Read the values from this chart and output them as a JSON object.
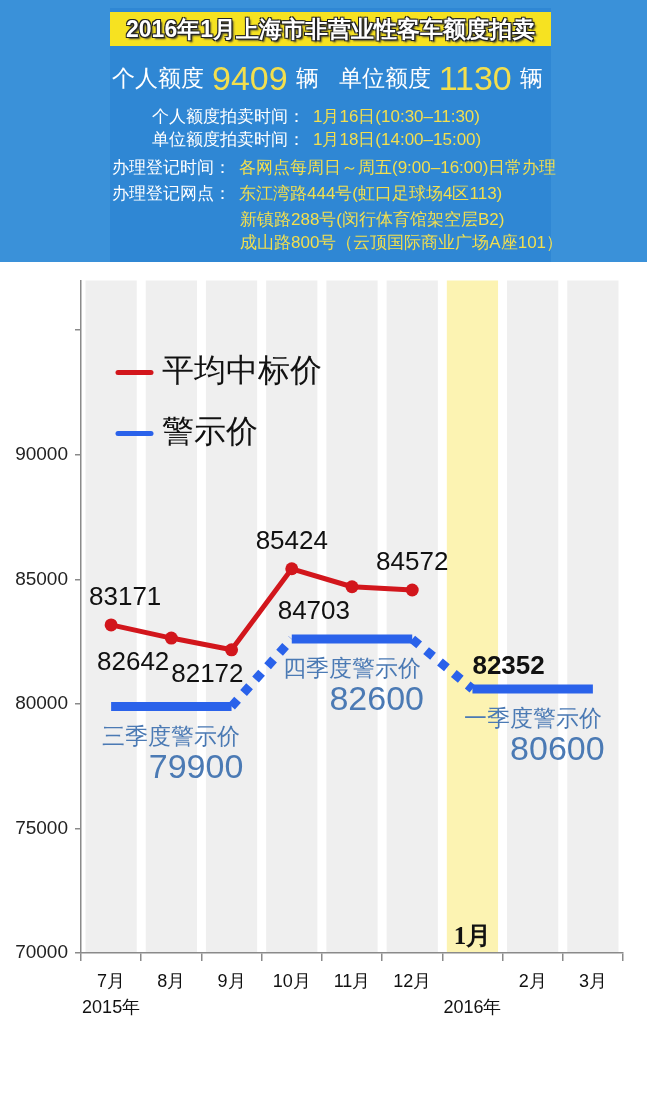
{
  "chart_data": {
    "type": "line",
    "title": "2016年1月上海市非营业性客车额度拍卖",
    "categories": [
      "7月\n2015年",
      "8月",
      "9月",
      "10月",
      "11月",
      "12月",
      "1月\n2016年",
      "2月",
      "3月"
    ],
    "series": [
      {
        "name": "平均中标价",
        "color": "#d2161c",
        "marker": "circle",
        "values": [
          83171,
          82642,
          82172,
          85424,
          84703,
          84572,
          null,
          null,
          null
        ],
        "value_labels": [
          "83171",
          "82642",
          "82172",
          "85424",
          "84703",
          "84572",
          null,
          null,
          null
        ]
      },
      {
        "name": "警示价",
        "color": "#2a62ea",
        "marker": "none",
        "values": [
          79900,
          79900,
          79900,
          82600,
          82600,
          82600,
          80600,
          80600,
          80600
        ],
        "value_labels": [
          null,
          "79900",
          null,
          null,
          "82600",
          null,
          null,
          "80600",
          null
        ]
      }
    ],
    "ylim": [
      70000,
      97000
    ],
    "yticks": [
      70000,
      75000,
      80000,
      85000,
      90000,
      {
        "value": 95000,
        "label": null
      }
    ],
    "legend": "top left",
    "bands": [
      {
        "axis": "x",
        "from": "7月\n2015年",
        "to": "7月\n2015年",
        "color": "#efefef"
      },
      {
        "axis": "x",
        "from": "8月",
        "to": "8月",
        "color": "#efefef"
      },
      {
        "axis": "x",
        "from": "9月",
        "to": "9月",
        "color": "#efefef"
      },
      {
        "axis": "x",
        "from": "10月",
        "to": "10月",
        "color": "#efefef"
      },
      {
        "axis": "x",
        "from": "11月",
        "to": "11月",
        "color": "#efefef"
      },
      {
        "axis": "x",
        "from": "12月",
        "to": "12月",
        "color": "#efefef"
      },
      {
        "axis": "x",
        "from": "1月\n2016年",
        "to": "1月\n2016年",
        "color": "#fcf3b2"
      },
      {
        "axis": "x",
        "from": "2月",
        "to": "2月",
        "color": "#efefef"
      },
      {
        "axis": "x",
        "from": "3月",
        "to": "3月",
        "color": "#efefef"
      }
    ],
    "annotations": [
      "个人额度",
      "9409",
      "辆",
      "单位额度",
      "1130",
      "辆",
      "个人额度拍卖时间：",
      "1月16日(10:30–11:30)",
      "单位额度拍卖时间：",
      "1月18日(14:00–15:00)",
      "办理登记时间：",
      "各网点每周日～周五(9:00–16:00)日常办理",
      "办理登记网点：",
      "东江湾路444号(虹口足球场4区113)",
      "新镇路288号(闵行体育馆架空层B2)",
      "成山路800号（云顶国际商业广场A座101）",
      "82352",
      {
        "text": "三季度警示价",
        "x": "8月",
        "y": 79900
      },
      {
        "text": "四季度警示价",
        "x": "11月",
        "y": 82600
      },
      {
        "text": "一季度警示价",
        "x": "2月",
        "y": 80600
      }
    ]
  }
}
